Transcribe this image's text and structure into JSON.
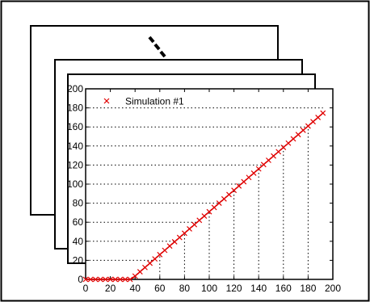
{
  "chart_data": {
    "type": "scatter",
    "title": "",
    "xlabel": "",
    "ylabel": "",
    "xlim": [
      0,
      200
    ],
    "ylim": [
      0,
      200
    ],
    "x_ticks": [
      0,
      20,
      40,
      60,
      80,
      100,
      120,
      140,
      160,
      180,
      200
    ],
    "y_ticks": [
      0,
      20,
      40,
      60,
      80,
      100,
      120,
      140,
      160,
      180,
      200
    ],
    "grid": "dotted lines at x = 40–180 and y = 20–180, extending from the axes to the data line",
    "legend": {
      "entries": [
        "Simulation #1"
      ],
      "placement": "top-left"
    },
    "series": [
      {
        "name": "Simulation #1",
        "marker": "x",
        "color": "#e00000",
        "x": [
          0,
          4,
          8,
          12,
          16,
          20,
          24,
          28,
          32,
          36,
          40,
          44,
          48,
          52,
          56,
          60,
          64,
          68,
          72,
          76,
          80,
          84,
          88,
          92,
          96,
          100,
          104,
          108,
          112,
          116,
          120,
          124,
          128,
          132,
          136,
          140,
          144,
          148,
          152,
          156,
          160,
          164,
          168,
          172,
          176,
          180,
          184,
          188,
          192
        ],
        "y": [
          0,
          0,
          0,
          0,
          0,
          0,
          0,
          0,
          0,
          0,
          3.5,
          8,
          12.5,
          17,
          21.5,
          26,
          30.5,
          35,
          39.5,
          44,
          48.5,
          53,
          57.5,
          62,
          66.5,
          71,
          75.5,
          80,
          84.5,
          89,
          93.5,
          98,
          102.5,
          107,
          111.5,
          116,
          120.5,
          125,
          129.5,
          134,
          138.5,
          143,
          147.5,
          152,
          156.5,
          161,
          165.5,
          170,
          174.5
        ]
      }
    ],
    "stacked_frames": 3,
    "more_frames_indicator": "dotted ellipsis between the stacked background frames"
  }
}
